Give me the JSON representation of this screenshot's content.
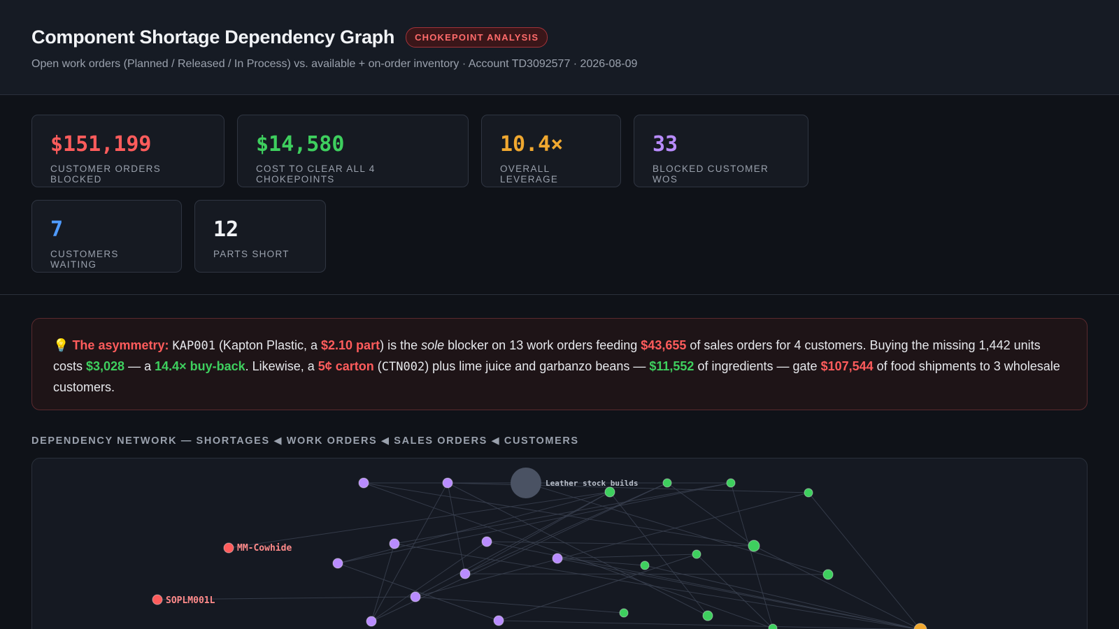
{
  "header": {
    "title": "Component Shortage Dependency Graph",
    "badge": "CHOKEPOINT ANALYSIS",
    "subtitle": "Open work orders (Planned / Released / In Process) vs. available + on-order inventory · Account TD3092577 · 2026-08-09"
  },
  "kpis": [
    {
      "value": "$151,199",
      "label": "CUSTOMER ORDERS BLOCKED",
      "color": "#ff5c5c"
    },
    {
      "value": "$14,580",
      "label": "COST TO CLEAR ALL 4 CHOKEPOINTS",
      "color": "#3ecf5e"
    },
    {
      "value": "10.4×",
      "label": "OVERALL LEVERAGE",
      "color": "#f0a830"
    },
    {
      "value": "33",
      "label": "BLOCKED CUSTOMER WOS",
      "color": "#b98cff"
    },
    {
      "value": "7",
      "label": "CUSTOMERS WAITING",
      "color": "#4f9bff"
    },
    {
      "value": "12",
      "label": "PARTS SHORT",
      "color": "#f1f3f6"
    }
  ],
  "insight": {
    "icon": "💡",
    "lead": "The asymmetry:",
    "part_code": "KAP001",
    "t1": " (Kapton Plastic, a ",
    "part_price": "$2.10 part",
    "t2": ") is the ",
    "sole": "sole",
    "t3": " blocker on 13 work orders feeding ",
    "sales_value": "$43,655",
    "t4": " of sales orders for 4 customers. Buying the missing 1,442 units costs ",
    "buy_cost": "$3,028",
    "t5": " — a ",
    "buyback": "14.4× buy-back",
    "t6": ". Likewise, a ",
    "carton": "5¢ carton",
    "t7": " (",
    "carton_code": "CTN002",
    "t8": ") plus lime juice and garbanzo beans — ",
    "ingredients_cost": "$11,552",
    "t9": " of ingredients — gate ",
    "food_value": "$107,544",
    "t10": " of food shipments to 3 wholesale customers."
  },
  "network": {
    "title": "DEPENDENCY NETWORK — SHORTAGES ◀ WORK ORDERS ◀ SALES ORDERS ◀ CUSTOMERS",
    "colors": {
      "shortage": "#ff5c5c",
      "work_order": "#b98cff",
      "sales_order": "#3ecf5e",
      "customer": "#f0a830",
      "group": "#4a5263",
      "edge": "#3a4150"
    },
    "labels": {
      "group": "Leather stock builds",
      "shortage_a": "MM-Cowhide",
      "shortage_b": "SOPLM001L"
    }
  }
}
